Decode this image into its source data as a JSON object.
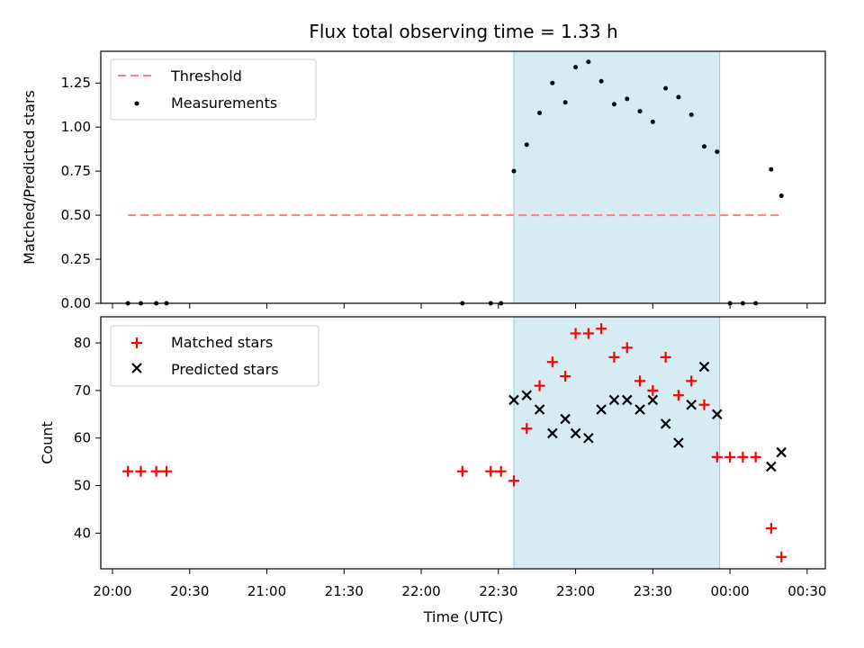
{
  "chart_data": [
    {
      "type": "scatter",
      "title": "Flux total observing time = 1.33 h",
      "xlabel": "",
      "ylabel": "Matched/Predicted stars",
      "ylim": [
        0,
        1.43
      ],
      "yticks": [
        "0.00",
        "0.25",
        "0.50",
        "0.75",
        "1.00",
        "1.25"
      ],
      "legend": {
        "placement": "top-left",
        "entries": [
          "Threshold",
          "Measurements"
        ]
      },
      "threshold": {
        "name": "Threshold",
        "y": 0.5,
        "x_start": "20:06",
        "x_end": "00:20",
        "color": "#ff7f7f"
      },
      "highlight_span": {
        "start": "22:36",
        "end": "23:56",
        "color": "#add8e6"
      },
      "series": [
        {
          "name": "Measurements",
          "color": "#000000",
          "x": [
            "20:06",
            "20:11",
            "20:17",
            "20:21",
            "22:16",
            "22:27",
            "22:31",
            "22:36",
            "22:41",
            "22:46",
            "22:51",
            "22:56",
            "23:00",
            "23:05",
            "23:10",
            "23:15",
            "23:20",
            "23:25",
            "23:30",
            "23:35",
            "23:40",
            "23:45",
            "23:50",
            "23:55",
            "00:00",
            "00:05",
            "00:10",
            "00:16",
            "00:20"
          ],
          "y": [
            0,
            0,
            0,
            0,
            0,
            0,
            0,
            0.75,
            0.9,
            1.08,
            1.25,
            1.14,
            1.34,
            1.37,
            1.26,
            1.13,
            1.16,
            1.09,
            1.03,
            1.22,
            1.17,
            1.07,
            0.89,
            0.86,
            0,
            0,
            0,
            0.76,
            0.61
          ]
        }
      ]
    },
    {
      "type": "scatter",
      "title": "",
      "xlabel": "Time (UTC)",
      "ylabel": "Count",
      "ylim": [
        32.5,
        85.5
      ],
      "yticks": [
        "40",
        "50",
        "60",
        "70",
        "80"
      ],
      "xticks": [
        "20:00",
        "20:30",
        "21:00",
        "21:30",
        "22:00",
        "22:30",
        "23:00",
        "23:30",
        "00:00",
        "00:30"
      ],
      "legend": {
        "placement": "top-left",
        "entries": [
          "Matched stars",
          "Predicted stars"
        ]
      },
      "highlight_span": {
        "start": "22:36",
        "end": "23:56",
        "color": "#add8e6"
      },
      "series": [
        {
          "name": "Matched stars",
          "marker": "+",
          "color": "#ff0000",
          "x": [
            "20:06",
            "20:11",
            "20:17",
            "20:21",
            "22:16",
            "22:27",
            "22:31",
            "22:36",
            "22:41",
            "22:46",
            "22:51",
            "22:56",
            "23:00",
            "23:05",
            "23:10",
            "23:15",
            "23:20",
            "23:25",
            "23:30",
            "23:35",
            "23:40",
            "23:45",
            "23:50",
            "23:55",
            "00:00",
            "00:05",
            "00:10",
            "00:16",
            "00:20"
          ],
          "y": [
            53,
            53,
            53,
            53,
            53,
            53,
            53,
            51,
            62,
            71,
            76,
            73,
            82,
            82,
            83,
            77,
            79,
            72,
            70,
            77,
            69,
            72,
            67,
            56,
            56,
            56,
            56,
            41,
            35
          ]
        },
        {
          "name": "Predicted stars",
          "marker": "x",
          "color": "#000000",
          "x": [
            "22:36",
            "22:41",
            "22:46",
            "22:51",
            "22:56",
            "23:00",
            "23:05",
            "23:10",
            "23:15",
            "23:20",
            "23:25",
            "23:30",
            "23:35",
            "23:40",
            "23:45",
            "23:50",
            "23:55",
            "00:16",
            "00:20"
          ],
          "y": [
            68,
            69,
            66,
            61,
            64,
            61,
            60,
            66,
            68,
            68,
            66,
            68,
            63,
            59,
            67,
            75,
            65,
            54,
            57
          ]
        }
      ]
    }
  ]
}
